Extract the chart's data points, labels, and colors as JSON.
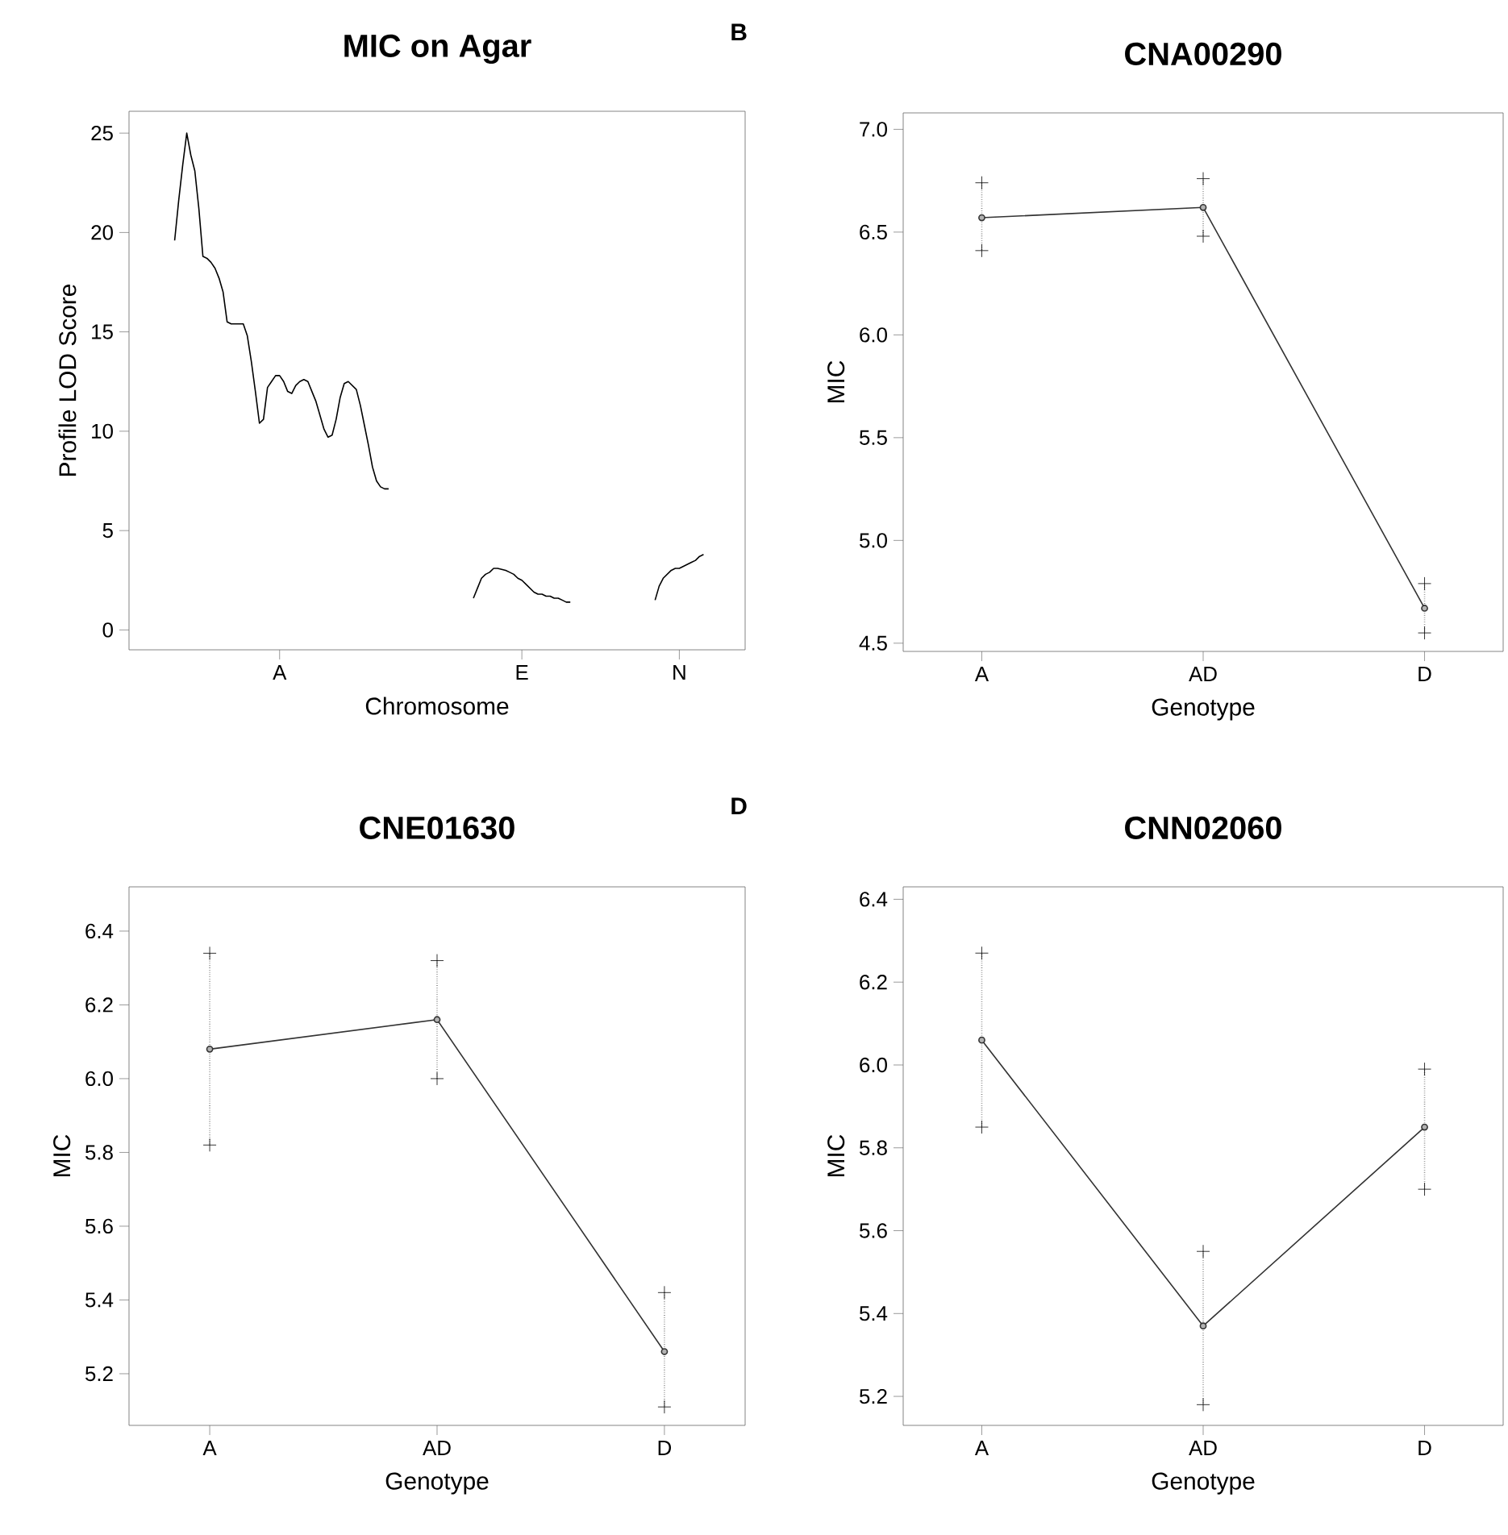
{
  "chart_data": [
    {
      "type": "line",
      "title": "MIC on Agar",
      "xlabel": "Chromosome",
      "ylabel": "Profile LOD Score",
      "line_style": "solid",
      "marker": "none",
      "ylim": [
        -1,
        26.1
      ],
      "yticks": [
        0,
        5,
        10,
        15,
        20,
        25
      ],
      "categories": [
        null,
        null,
        null,
        null,
        null,
        null,
        null,
        null,
        null,
        null,
        null,
        null,
        null,
        null,
        null,
        null,
        null,
        null,
        null,
        null,
        null,
        null,
        null,
        null,
        null,
        null,
        null,
        null,
        null,
        null,
        null,
        null,
        null,
        null,
        null,
        null,
        null,
        "A",
        null,
        null,
        null,
        null,
        null,
        null,
        null,
        null,
        null,
        null,
        null,
        null,
        null,
        null,
        null,
        null,
        null,
        null,
        null,
        null,
        null,
        null,
        null,
        null,
        null,
        null,
        null,
        null,
        null,
        null,
        null,
        null,
        null,
        null,
        null,
        null,
        null,
        null,
        null,
        null,
        null,
        null,
        null,
        null,
        null,
        null,
        null,
        null,
        null,
        null,
        null,
        null,
        null,
        null,
        null,
        null,
        null,
        null,
        null,
        "E",
        null,
        null,
        null,
        null,
        null,
        null,
        null,
        null,
        null,
        null,
        null,
        null,
        null,
        null,
        null,
        null,
        null,
        null,
        null,
        null,
        null,
        null,
        null,
        null,
        null,
        null,
        null,
        null,
        null,
        null,
        null,
        null,
        null,
        null,
        null,
        null,
        null,
        null,
        "N",
        null,
        null,
        null,
        null,
        null,
        null,
        null,
        null,
        null,
        null,
        null,
        null,
        null,
        null,
        null,
        null
      ],
      "series": [
        {
          "color": "#000000",
          "values": [
            null,
            null,
            null,
            null,
            null,
            null,
            null,
            null,
            null,
            null,
            null,
            19.6,
            21.6,
            23.4,
            25.0,
            23.9,
            23.1,
            21.2,
            18.8,
            18.7,
            18.5,
            18.2,
            17.7,
            17.0,
            15.5,
            15.4,
            15.4,
            15.4,
            15.4,
            14.8,
            13.5,
            12.0,
            10.4,
            10.6,
            12.2,
            12.5,
            12.8,
            12.8,
            12.5,
            12.0,
            11.9,
            12.3,
            12.5,
            12.6,
            12.5,
            12.0,
            11.5,
            10.8,
            10.1,
            9.7,
            9.8,
            10.6,
            11.7,
            12.4,
            12.5,
            12.3,
            12.1,
            11.3,
            10.3,
            9.3,
            8.2,
            7.5,
            7.2,
            7.1,
            7.1,
            null,
            null,
            null,
            null,
            null,
            null,
            null,
            null,
            null,
            null,
            null,
            null,
            null,
            null,
            null,
            null,
            null,
            null,
            null,
            null,
            1.6,
            2.1,
            2.6,
            2.8,
            2.9,
            3.1,
            3.1,
            3.05,
            3.0,
            2.9,
            2.8,
            2.6,
            2.5,
            2.3,
            2.1,
            1.9,
            1.8,
            1.8,
            1.7,
            1.7,
            1.6,
            1.6,
            1.5,
            1.4,
            1.4,
            null,
            null,
            null,
            null,
            null,
            null,
            null,
            null,
            null,
            null,
            null,
            null,
            null,
            null,
            null,
            null,
            null,
            null,
            null,
            null,
            1.5,
            2.2,
            2.6,
            2.8,
            3.0,
            3.1,
            3.1,
            3.2,
            3.3,
            3.4,
            3.5,
            3.7,
            3.8,
            null,
            null,
            null,
            null,
            null,
            null,
            null,
            null,
            null,
            null
          ]
        }
      ]
    },
    {
      "type": "line",
      "title": "CNA00290",
      "xlabel": "Genotype",
      "ylabel": "MIC",
      "line_style": "solid",
      "marker": "circle",
      "annotations": [
        "B"
      ],
      "categories": [
        "A",
        "AD",
        "D"
      ],
      "ylim": [
        4.46,
        7.08
      ],
      "yticks": [
        {
          "value": 4.5,
          "label": "4.5"
        },
        {
          "value": 5,
          "label": "5.0"
        },
        {
          "value": 5.5,
          "label": "5.5"
        },
        {
          "value": 6,
          "label": "6.0"
        },
        {
          "value": 6.5,
          "label": "6.5"
        },
        {
          "value": 7,
          "label": "7.0"
        }
      ],
      "series": [
        {
          "color": "#333333",
          "values": [
            6.57,
            6.62,
            4.67
          ],
          "errors": [
            [
              6.41,
              6.74
            ],
            [
              6.48,
              6.76
            ],
            [
              4.55,
              4.79
            ]
          ]
        }
      ]
    },
    {
      "type": "line",
      "title": "CNE01630",
      "xlabel": "Genotype",
      "ylabel": "MIC",
      "line_style": "solid",
      "marker": "circle",
      "categories": [
        "A",
        "AD",
        "D"
      ],
      "ylim": [
        5.06,
        6.52
      ],
      "yticks": [
        5.2,
        5.4,
        5.6,
        5.8,
        {
          "value": 6,
          "label": "6.0"
        },
        6.2,
        6.4
      ],
      "series": [
        {
          "color": "#333333",
          "values": [
            6.08,
            6.16,
            5.26
          ],
          "errors": [
            [
              5.82,
              6.34
            ],
            [
              6.0,
              6.32
            ],
            [
              5.11,
              5.42
            ]
          ]
        }
      ]
    },
    {
      "type": "line",
      "title": "CNN02060",
      "xlabel": "Genotype",
      "ylabel": "MIC",
      "line_style": "solid",
      "marker": "circle",
      "annotations": [
        "D"
      ],
      "categories": [
        "A",
        "AD",
        "D"
      ],
      "ylim": [
        5.13,
        6.43
      ],
      "yticks": [
        5.2,
        5.4,
        5.6,
        5.8,
        {
          "value": 6,
          "label": "6.0"
        },
        6.2,
        6.4
      ],
      "series": [
        {
          "color": "#333333",
          "values": [
            6.06,
            5.37,
            5.85
          ],
          "errors": [
            [
              5.85,
              6.27
            ],
            [
              5.18,
              5.55
            ],
            [
              5.7,
              5.99
            ]
          ]
        }
      ]
    }
  ]
}
